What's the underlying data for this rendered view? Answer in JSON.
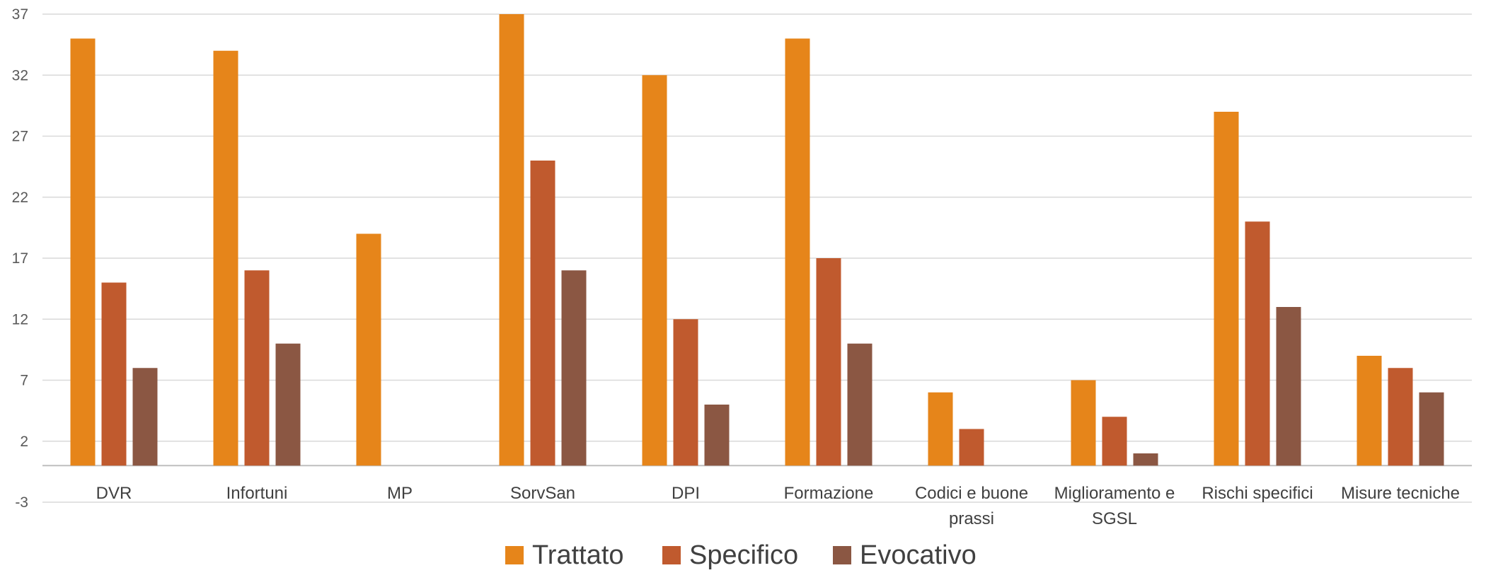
{
  "chart_data": {
    "type": "bar",
    "title": "",
    "xlabel": "",
    "ylabel": "",
    "categories": [
      [
        "DVR"
      ],
      [
        "Infortuni"
      ],
      [
        "MP"
      ],
      [
        "SorvSan"
      ],
      [
        "DPI"
      ],
      [
        "Formazione"
      ],
      [
        "Codici e buone",
        "prassi"
      ],
      [
        "Miglioramento e",
        "SGSL"
      ],
      [
        "Rischi specifici"
      ],
      [
        "Misure tecniche"
      ]
    ],
    "series": [
      {
        "name": "Trattato",
        "color": "#E6851A",
        "values": [
          35,
          34,
          19,
          37,
          32,
          35,
          6,
          7,
          29,
          9
        ]
      },
      {
        "name": "Specifico",
        "color": "#C05A2E",
        "values": [
          15,
          16,
          0,
          25,
          12,
          17,
          3,
          4,
          20,
          8
        ]
      },
      {
        "name": "Evocativo",
        "color": "#8B5743",
        "values": [
          8,
          10,
          0,
          16,
          5,
          10,
          0,
          1,
          13,
          6
        ]
      }
    ],
    "ylim": [
      -3,
      37
    ],
    "yticks": [
      37,
      32,
      27,
      22,
      17,
      12,
      7,
      2,
      -3
    ],
    "grid": true,
    "legend_position": "bottom"
  }
}
